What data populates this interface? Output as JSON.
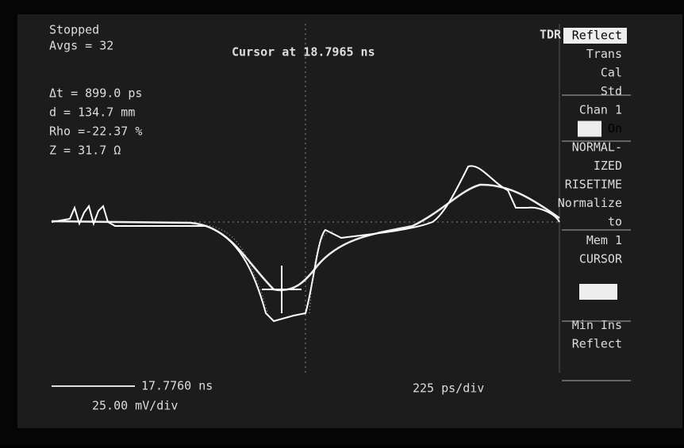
{
  "status": {
    "state": "Stopped",
    "averages": "Avgs = 32"
  },
  "cursor_readout": "Cursor at  18.7965 ns",
  "mode": "TDR",
  "readouts": [
    "Δt  = 899.0  ps",
    "d   = 134.7 mm",
    "Rho =-22.37 %",
    "Z   = 31.7  Ω"
  ],
  "menu": [
    "Reflect",
    "Trans",
    "Cal",
    "Std",
    "Chan 1",
    "On",
    "NORMAL-",
    "IZED",
    "RISETIME",
    "Normalize",
    "to",
    "Mem 1",
    "CURSOR",
    "Min Ins",
    "Reflect"
  ],
  "footer": {
    "time_ref": "17.7760 ns",
    "vertical_scale": "25.00 mV/div",
    "horizontal_scale": "225  ps/div"
  }
}
